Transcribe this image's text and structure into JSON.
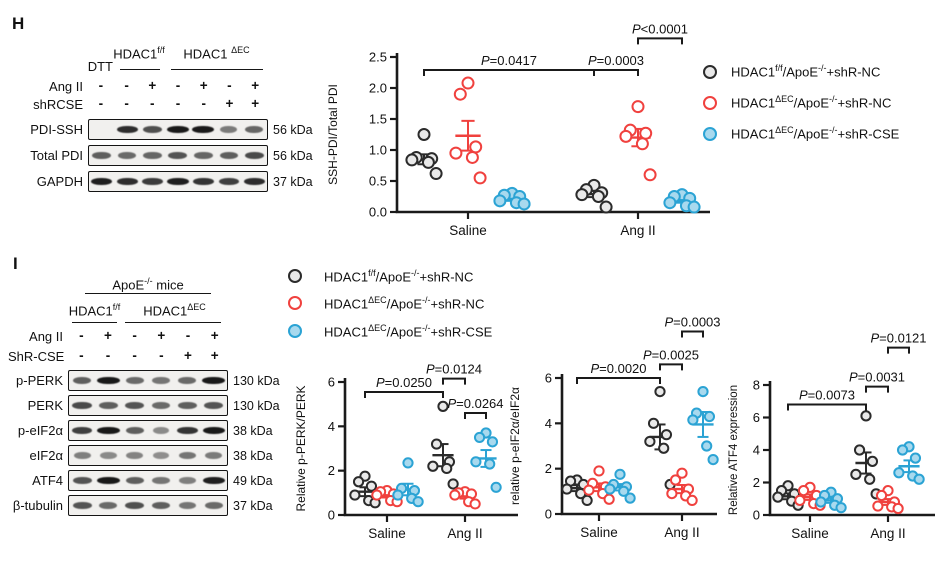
{
  "colors": {
    "axis": "#1a1a1a",
    "black_stroke": "#2b2b2b",
    "black_fill": "#e9e9e9",
    "red_stroke": "#f0413e",
    "red_fill": "#ffffff",
    "blue_stroke": "#2ba3d4",
    "blue_fill": "#a8d9ee"
  },
  "legend": [
    {
      "p1": "HDAC1",
      "s1": "f/f",
      "p2": "/ApoE",
      "s2": "-/-",
      "p3": "+shR-NC",
      "color_key": "black"
    },
    {
      "p1": "HDAC1",
      "s1": "ΔEC",
      "p2": "/ApoE",
      "s2": "-/-",
      "p3": "+shR-NC",
      "color_key": "red"
    },
    {
      "p1": "HDAC1",
      "s1": "ΔEC",
      "p2": "/ApoE",
      "s2": "-/-",
      "p3": "+shR-CSE",
      "color_key": "blue"
    }
  ],
  "panel_h": {
    "label": "H",
    "blot": {
      "groups": [
        {
          "base": "HDAC1",
          "sup": "f/f"
        },
        {
          "base": "HDAC1 ",
          "sup": "ΔEC"
        }
      ],
      "dtt": "DTT",
      "condition_rows": [
        {
          "label": "Ang II",
          "symbols": [
            "-",
            "-",
            "+",
            "-",
            "+",
            "-",
            "+"
          ]
        },
        {
          "label": "shRCSE",
          "symbols": [
            "-",
            "-",
            "-",
            "-",
            "-",
            "+",
            "+"
          ]
        }
      ],
      "strips": [
        {
          "label": "PDI-SSH",
          "kda": "56 kDa",
          "bands": [
            0,
            0.78,
            0.62,
            0.95,
            0.9,
            0.42,
            0.52
          ]
        },
        {
          "label": "Total PDI",
          "kda": "56 kDa",
          "bands": [
            0.55,
            0.5,
            0.52,
            0.6,
            0.52,
            0.55,
            0.65
          ]
        },
        {
          "label": "GAPDH",
          "kda": "37 kDa",
          "bands": [
            0.85,
            0.78,
            0.72,
            0.85,
            0.75,
            0.7,
            0.78
          ]
        }
      ]
    },
    "chart": {
      "type": "scatter",
      "ylabel": "SSH-PDI/Total PDI",
      "ymax": 2.5,
      "ystep": 0.5,
      "ydecimals": 1,
      "categories": [
        "Saline",
        "Ang II"
      ],
      "group_colors": [
        "black",
        "red",
        "blue"
      ],
      "series": [
        {
          "cat": 0,
          "grp": 0,
          "values": [
            1.25,
            0.88,
            0.86,
            0.84,
            0.8,
            0.62
          ],
          "mean": 0.85,
          "sem": 0.08
        },
        {
          "cat": 0,
          "grp": 1,
          "values": [
            2.08,
            1.9,
            1.05,
            0.95,
            0.88,
            0.55
          ],
          "mean": 1.23,
          "sem": 0.24
        },
        {
          "cat": 0,
          "grp": 2,
          "values": [
            0.3,
            0.27,
            0.25,
            0.18,
            0.15,
            0.13
          ],
          "mean": 0.21,
          "sem": 0.03
        },
        {
          "cat": 1,
          "grp": 0,
          "values": [
            0.43,
            0.36,
            0.31,
            0.28,
            0.25,
            0.08
          ],
          "mean": 0.29,
          "sem": 0.05
        },
        {
          "cat": 1,
          "grp": 1,
          "values": [
            1.7,
            1.32,
            1.27,
            1.22,
            1.1,
            0.6
          ],
          "mean": 1.2,
          "sem": 0.14
        },
        {
          "cat": 1,
          "grp": 2,
          "values": [
            0.28,
            0.25,
            0.22,
            0.15,
            0.1,
            0.08
          ],
          "mean": 0.18,
          "sem": 0.03
        }
      ],
      "brackets": [
        {
          "label": "P=0.0417",
          "from": [
            0,
            0
          ],
          "to": [
            1,
            0
          ],
          "y": 2.29
        },
        {
          "label": "P=0.0003",
          "from": [
            1,
            0
          ],
          "to": [
            1,
            1
          ],
          "y": 2.29
        },
        {
          "label": "P<0.0001",
          "from": [
            1,
            1
          ],
          "to": [
            1,
            2
          ],
          "y": 2.8
        }
      ]
    }
  },
  "panel_i": {
    "label": "I",
    "blot": {
      "mice_header": {
        "base": "ApoE",
        "sup": "-/-",
        "rest": " mice"
      },
      "groups": [
        {
          "base": "HDAC1",
          "sup": "f/f"
        },
        {
          "base": "HDAC1",
          "sup": "ΔEC"
        }
      ],
      "condition_rows": [
        {
          "label": "Ang II",
          "symbols": [
            "-",
            "+",
            "-",
            "+",
            "-",
            "+"
          ]
        },
        {
          "label": "ShR-CSE",
          "symbols": [
            "-",
            "-",
            "-",
            "-",
            "+",
            "+"
          ]
        }
      ],
      "strips": [
        {
          "label": "p-PERK",
          "kda": "130 kDa",
          "bands": [
            0.55,
            0.95,
            0.5,
            0.45,
            0.5,
            0.97
          ]
        },
        {
          "label": "PERK",
          "kda": "130 kDa",
          "bands": [
            0.65,
            0.55,
            0.6,
            0.5,
            0.55,
            0.6
          ]
        },
        {
          "label": "p-eIF2α",
          "kda": "38 kDa",
          "bands": [
            0.7,
            0.97,
            0.55,
            0.35,
            0.75,
            0.95
          ]
        },
        {
          "label": "eIF2α",
          "kda": "38 kDa",
          "bands": [
            0.4,
            0.35,
            0.38,
            0.33,
            0.45,
            0.42
          ]
        },
        {
          "label": "ATF4",
          "kda": "49 kDa",
          "bands": [
            0.6,
            0.97,
            0.55,
            0.45,
            0.4,
            0.85
          ]
        },
        {
          "label": "β-tubulin",
          "kda": "37 kDa",
          "bands": [
            0.6,
            0.5,
            0.62,
            0.55,
            0.45,
            0.5
          ]
        }
      ]
    },
    "charts": [
      {
        "type": "scatter",
        "ylabel": "Relative p-PERK/PERK",
        "ymax": 6,
        "ystep": 2,
        "ydecimals": 0,
        "categories": [
          "Saline",
          "Ang II"
        ],
        "group_colors": [
          "black",
          "red",
          "blue"
        ],
        "series": [
          {
            "cat": 0,
            "grp": 0,
            "values": [
              1.75,
              1.5,
              1.3,
              0.9,
              0.65,
              0.55
            ],
            "mean": 1.05,
            "sem": 0.2
          },
          {
            "cat": 0,
            "grp": 1,
            "values": [
              1.1,
              1.05,
              0.95,
              0.9,
              0.65,
              0.6
            ],
            "mean": 0.88,
            "sem": 0.09
          },
          {
            "cat": 0,
            "grp": 2,
            "values": [
              2.35,
              1.2,
              1.1,
              0.9,
              0.75,
              0.6
            ],
            "mean": 1.15,
            "sem": 0.26
          },
          {
            "cat": 1,
            "grp": 0,
            "values": [
              4.9,
              3.2,
              2.4,
              2.2,
              2.1,
              1.4
            ],
            "mean": 2.7,
            "sem": 0.5
          },
          {
            "cat": 1,
            "grp": 1,
            "values": [
              1.05,
              1.0,
              0.95,
              0.9,
              0.6,
              0.5
            ],
            "mean": 0.83,
            "sem": 0.09
          },
          {
            "cat": 1,
            "grp": 2,
            "values": [
              3.7,
              3.5,
              3.3,
              2.4,
              2.3,
              1.25
            ],
            "mean": 2.55,
            "sem": 0.38
          }
        ],
        "brackets": [
          {
            "label": "P=0.0250",
            "from": [
              0,
              0
            ],
            "to": [
              1,
              0
            ],
            "y": 5.55
          },
          {
            "label": "P=0.0124",
            "from": [
              1,
              0
            ],
            "to": [
              1,
              1
            ],
            "y": 6.15
          },
          {
            "label": "P=0.0264",
            "from": [
              1,
              1
            ],
            "to": [
              1,
              2
            ],
            "y": 4.6
          }
        ]
      },
      {
        "type": "scatter",
        "ylabel": "relative p-eIF2α/eIF2α",
        "ymax": 6,
        "ystep": 2,
        "ydecimals": 0,
        "categories": [
          "Saline",
          "Ang II"
        ],
        "group_colors": [
          "black",
          "red",
          "blue"
        ],
        "series": [
          {
            "cat": 0,
            "grp": 0,
            "values": [
              1.5,
              1.45,
              1.3,
              1.1,
              0.9,
              0.6
            ],
            "mean": 1.14,
            "sem": 0.13
          },
          {
            "cat": 0,
            "grp": 1,
            "values": [
              1.9,
              1.35,
              1.2,
              1.05,
              0.9,
              0.65
            ],
            "mean": 1.18,
            "sem": 0.17
          },
          {
            "cat": 0,
            "grp": 2,
            "values": [
              1.75,
              1.3,
              1.2,
              1.1,
              1.0,
              0.7
            ],
            "mean": 1.18,
            "sem": 0.14
          },
          {
            "cat": 1,
            "grp": 0,
            "values": [
              5.4,
              4.0,
              3.5,
              3.2,
              2.9,
              1.3
            ],
            "mean": 3.4,
            "sem": 0.55
          },
          {
            "cat": 1,
            "grp": 1,
            "values": [
              1.8,
              1.5,
              1.1,
              0.9,
              0.8,
              0.6
            ],
            "mean": 1.1,
            "sem": 0.18
          },
          {
            "cat": 1,
            "grp": 2,
            "values": [
              5.4,
              4.45,
              4.3,
              4.15,
              3.0,
              2.4
            ],
            "mean": 3.95,
            "sem": 0.55
          }
        ],
        "brackets": [
          {
            "label": "P=0.0020",
            "from": [
              0,
              0
            ],
            "to": [
              1,
              0
            ],
            "y": 6.0
          },
          {
            "label": "P=0.0025",
            "from": [
              1,
              0
            ],
            "to": [
              1,
              1
            ],
            "y": 6.6
          },
          {
            "label": "P=0.0003",
            "from": [
              1,
              1
            ],
            "to": [
              1,
              2
            ],
            "y": 8.05
          }
        ]
      },
      {
        "type": "scatter",
        "ylabel": "Relative ATF4 expression",
        "ymax": 8,
        "ystep": 2,
        "ydecimals": 0,
        "categories": [
          "Saline",
          "Ang II"
        ],
        "group_colors": [
          "black",
          "red",
          "blue"
        ],
        "series": [
          {
            "cat": 0,
            "grp": 0,
            "values": [
              1.8,
              1.5,
              1.3,
              1.1,
              0.85,
              0.6
            ],
            "mean": 1.15,
            "sem": 0.18
          },
          {
            "cat": 0,
            "grp": 1,
            "values": [
              1.7,
              1.5,
              1.2,
              0.9,
              0.7,
              0.6
            ],
            "mean": 1.1,
            "sem": 0.17
          },
          {
            "cat": 0,
            "grp": 2,
            "values": [
              1.4,
              1.2,
              1.0,
              0.8,
              0.6,
              0.45
            ],
            "mean": 0.9,
            "sem": 0.15
          },
          {
            "cat": 1,
            "grp": 0,
            "values": [
              6.1,
              4.0,
              3.3,
              2.5,
              2.2,
              1.3
            ],
            "mean": 3.2,
            "sem": 0.65
          },
          {
            "cat": 1,
            "grp": 1,
            "values": [
              1.5,
              1.2,
              0.8,
              0.55,
              0.5,
              0.4
            ],
            "mean": 0.8,
            "sem": 0.18
          },
          {
            "cat": 1,
            "grp": 2,
            "values": [
              4.2,
              4.0,
              3.5,
              2.6,
              2.4,
              2.2
            ],
            "mean": 3.0,
            "sem": 0.36
          }
        ],
        "brackets": [
          {
            "label": "P=0.0073",
            "from": [
              0,
              0
            ],
            "to": [
              1,
              0
            ],
            "y": 6.8
          },
          {
            "label": "P=0.0031",
            "from": [
              1,
              0
            ],
            "to": [
              1,
              1
            ],
            "y": 7.9
          },
          {
            "label": "P=0.0121",
            "from": [
              1,
              1
            ],
            "to": [
              1,
              2
            ],
            "y": 10.3
          }
        ]
      }
    ]
  }
}
